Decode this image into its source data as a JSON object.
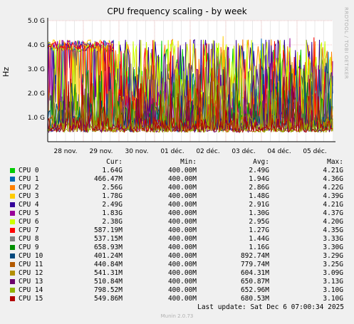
{
  "chart_data": {
    "type": "line",
    "title": "CPU frequency scaling - by week",
    "ylabel": "Hz",
    "ylim": [
      0,
      5000000000
    ],
    "yticks": [
      {
        "value": 1000000000,
        "label": "1.0 G"
      },
      {
        "value": 2000000000,
        "label": "2.0 G"
      },
      {
        "value": 3000000000,
        "label": "3.0 G"
      },
      {
        "value": 4000000000,
        "label": "4.0 G"
      },
      {
        "value": 5000000000,
        "label": "5.0 G"
      }
    ],
    "xlim": [
      0,
      8
    ],
    "xticks": [
      {
        "value": 0.5,
        "label": "28 nov."
      },
      {
        "value": 1.5,
        "label": "29 nov."
      },
      {
        "value": 2.5,
        "label": "30 nov."
      },
      {
        "value": 3.5,
        "label": "01 déc."
      },
      {
        "value": 4.5,
        "label": "02 déc."
      },
      {
        "value": 5.5,
        "label": "03 déc."
      },
      {
        "value": 6.5,
        "label": "04 déc."
      },
      {
        "value": 7.5,
        "label": "05 déc."
      }
    ],
    "series": [
      {
        "name": "CPU 0",
        "color": "#00cc00",
        "cur": "1.64G",
        "min": "400.00M",
        "avg": "2.49G",
        "max": "4.21G",
        "avg_value": 2490000000,
        "max_value": 4210000000
      },
      {
        "name": "CPU 1",
        "color": "#0066b3",
        "cur": "466.47M",
        "min": "400.00M",
        "avg": "1.94G",
        "max": "4.36G",
        "avg_value": 1940000000,
        "max_value": 4360000000
      },
      {
        "name": "CPU 2",
        "color": "#ff8000",
        "cur": "2.56G",
        "min": "400.00M",
        "avg": "2.86G",
        "max": "4.22G",
        "avg_value": 2860000000,
        "max_value": 4220000000
      },
      {
        "name": "CPU 3",
        "color": "#ffcc00",
        "cur": "1.78G",
        "min": "400.00M",
        "avg": "1.48G",
        "max": "4.39G",
        "avg_value": 1480000000,
        "max_value": 4390000000
      },
      {
        "name": "CPU 4",
        "color": "#330099",
        "cur": "2.49G",
        "min": "400.00M",
        "avg": "2.91G",
        "max": "4.21G",
        "avg_value": 2910000000,
        "max_value": 4210000000
      },
      {
        "name": "CPU 5",
        "color": "#990099",
        "cur": "1.83G",
        "min": "400.00M",
        "avg": "1.30G",
        "max": "4.37G",
        "avg_value": 1300000000,
        "max_value": 4370000000
      },
      {
        "name": "CPU 6",
        "color": "#ccff00",
        "cur": "2.38G",
        "min": "400.00M",
        "avg": "2.95G",
        "max": "4.20G",
        "avg_value": 2950000000,
        "max_value": 4200000000
      },
      {
        "name": "CPU 7",
        "color": "#ff0000",
        "cur": "587.19M",
        "min": "400.00M",
        "avg": "1.27G",
        "max": "4.35G",
        "avg_value": 1270000000,
        "max_value": 4350000000
      },
      {
        "name": "CPU 8",
        "color": "#808080",
        "cur": "537.15M",
        "min": "400.00M",
        "avg": "1.44G",
        "max": "3.33G",
        "avg_value": 1440000000,
        "max_value": 3330000000
      },
      {
        "name": "CPU 9",
        "color": "#008f00",
        "cur": "658.93M",
        "min": "400.00M",
        "avg": "1.16G",
        "max": "3.30G",
        "avg_value": 1160000000,
        "max_value": 3300000000
      },
      {
        "name": "CPU 10",
        "color": "#00487d",
        "cur": "401.24M",
        "min": "400.00M",
        "avg": "892.74M",
        "max": "3.29G",
        "avg_value": 892740000,
        "max_value": 3290000000
      },
      {
        "name": "CPU 11",
        "color": "#b35a00",
        "cur": "440.84M",
        "min": "400.00M",
        "avg": "779.74M",
        "max": "3.25G",
        "avg_value": 779740000,
        "max_value": 3250000000
      },
      {
        "name": "CPU 12",
        "color": "#b38f00",
        "cur": "541.31M",
        "min": "400.00M",
        "avg": "604.31M",
        "max": "3.09G",
        "avg_value": 604310000,
        "max_value": 3090000000
      },
      {
        "name": "CPU 13",
        "color": "#6b006b",
        "cur": "510.84M",
        "min": "400.00M",
        "avg": "650.87M",
        "max": "3.13G",
        "avg_value": 650870000,
        "max_value": 3130000000
      },
      {
        "name": "CPU 14",
        "color": "#8fb300",
        "cur": "798.52M",
        "min": "400.00M",
        "avg": "652.96M",
        "max": "3.10G",
        "avg_value": 652960000,
        "max_value": 3100000000
      },
      {
        "name": "CPU 15",
        "color": "#b30000",
        "cur": "549.86M",
        "min": "400.00M",
        "avg": "680.53M",
        "max": "3.10G",
        "avg_value": 680530000,
        "max_value": 3100000000
      }
    ],
    "grid": true
  },
  "legend_headers": {
    "cur": "Cur:",
    "min": "Min:",
    "avg": "Avg:",
    "max": "Max:"
  },
  "side_label": "RRDTOOL / TOBI OETIKER",
  "last_update": "Last update: Sat Dec  6 07:00:34 2025",
  "version": "Munin 2.0.73"
}
